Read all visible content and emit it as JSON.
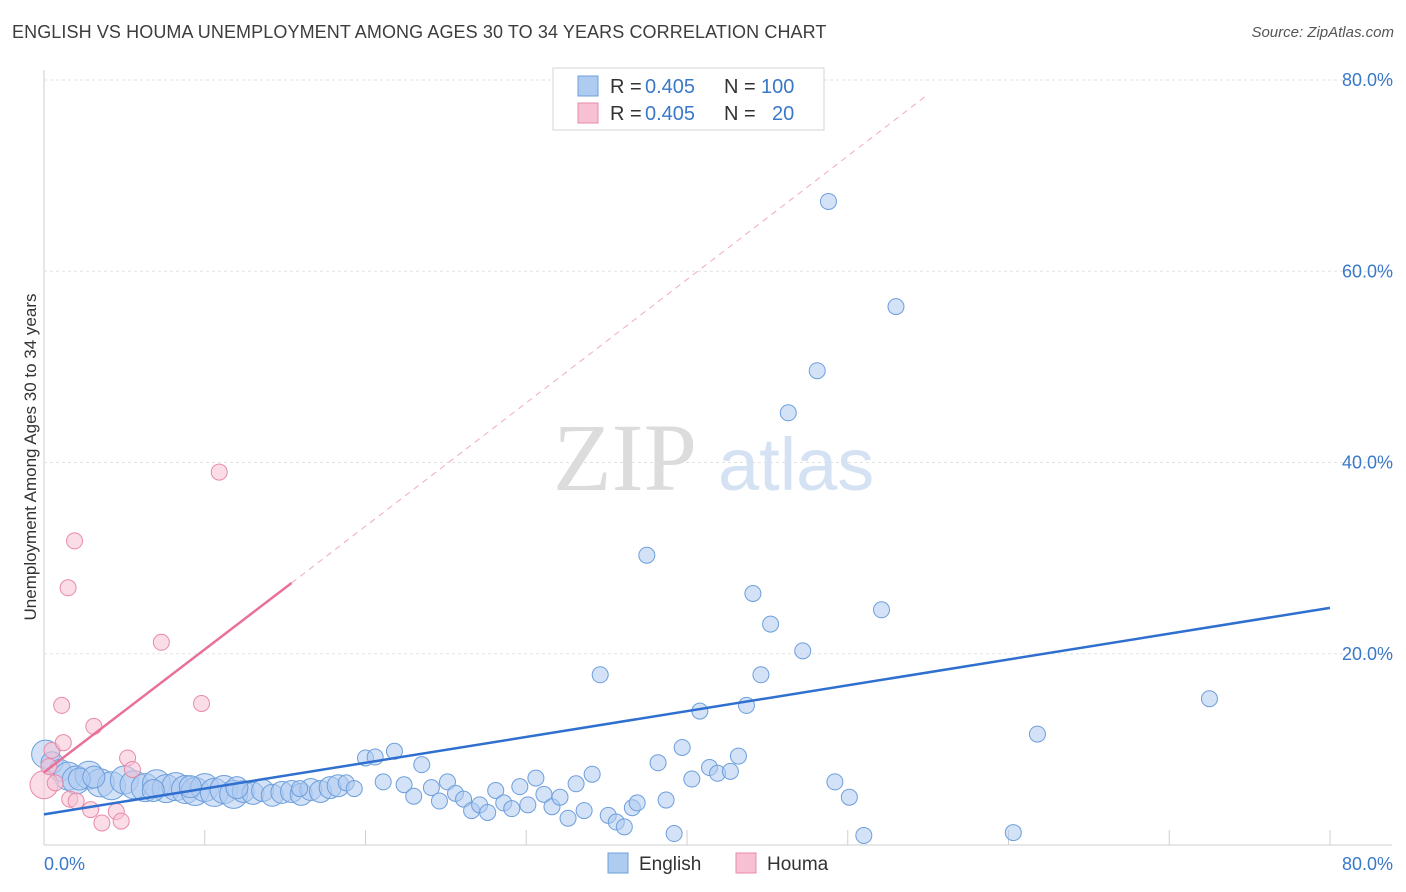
{
  "title": "ENGLISH VS HOUMA UNEMPLOYMENT AMONG AGES 30 TO 34 YEARS CORRELATION CHART",
  "source": "Source: ZipAtlas.com",
  "watermark": {
    "zip": "ZIP",
    "atlas": "atlas"
  },
  "legend": {
    "rows": [
      {
        "r_label": "R =",
        "r_value": "0.405",
        "n_label": "N =",
        "n_value": "100"
      },
      {
        "r_label": "R =",
        "r_value": "0.405",
        "n_label": "N =",
        "n_value": "20"
      }
    ]
  },
  "bottom_legend": [
    "English",
    "Houma"
  ],
  "colors": {
    "english_fill": "#aecbf0",
    "english_stroke": "#6d9fdc",
    "english_line": "#2f6fcf",
    "houma_fill": "#f7c1d3",
    "houma_stroke": "#e88aa9",
    "houma_line": "#e8709a",
    "tick_text": "#3a78c9",
    "grid": "#e2e2e2"
  },
  "chart_data": {
    "type": "scatter",
    "title": "ENGLISH VS HOUMA UNEMPLOYMENT AMONG AGES 30 TO 34 YEARS CORRELATION CHART",
    "xlabel": "",
    "ylabel": "Unemployment Among Ages 30 to 34 years",
    "xlim": [
      0,
      80
    ],
    "ylim": [
      0,
      80
    ],
    "x_ticks": [
      0,
      80
    ],
    "x_tick_labels": [
      "0.0%",
      "80.0%"
    ],
    "y_ticks": [
      20,
      40,
      60,
      80
    ],
    "y_tick_labels": [
      "20.0%",
      "40.0%",
      "60.0%",
      "80.0%"
    ],
    "grid": true,
    "legend_position": "top-center",
    "series": [
      {
        "name": "English",
        "r": 0.405,
        "n": 100,
        "trend": {
          "x": [
            0,
            80
          ],
          "y": [
            3.2,
            24.8
          ],
          "style": "solid"
        },
        "points": [
          {
            "x": 0.1,
            "y": 9.5,
            "s": 3
          },
          {
            "x": 0.5,
            "y": 8.6,
            "s": 2
          },
          {
            "x": 1.0,
            "y": 7.8,
            "s": 2
          },
          {
            "x": 1.5,
            "y": 7.2,
            "s": 3
          },
          {
            "x": 2.0,
            "y": 6.8,
            "s": 3
          },
          {
            "x": 2.8,
            "y": 7.3,
            "s": 3
          },
          {
            "x": 3.5,
            "y": 6.5,
            "s": 3
          },
          {
            "x": 4.2,
            "y": 6.2,
            "s": 3
          },
          {
            "x": 5.0,
            "y": 6.8,
            "s": 3
          },
          {
            "x": 5.6,
            "y": 6.3,
            "s": 3
          },
          {
            "x": 6.3,
            "y": 6.0,
            "s": 3
          },
          {
            "x": 7.0,
            "y": 6.4,
            "s": 3
          },
          {
            "x": 7.6,
            "y": 5.9,
            "s": 3
          },
          {
            "x": 8.2,
            "y": 6.1,
            "s": 3
          },
          {
            "x": 8.8,
            "y": 5.8,
            "s": 3
          },
          {
            "x": 9.4,
            "y": 5.6,
            "s": 3
          },
          {
            "x": 10.0,
            "y": 6.0,
            "s": 3
          },
          {
            "x": 10.6,
            "y": 5.5,
            "s": 3
          },
          {
            "x": 11.2,
            "y": 5.8,
            "s": 3
          },
          {
            "x": 11.8,
            "y": 5.3,
            "s": 3
          },
          {
            "x": 12.4,
            "y": 5.6,
            "s": 2
          },
          {
            "x": 13.0,
            "y": 5.4,
            "s": 2
          },
          {
            "x": 13.6,
            "y": 5.7,
            "s": 2
          },
          {
            "x": 14.2,
            "y": 5.2,
            "s": 2
          },
          {
            "x": 14.8,
            "y": 5.5,
            "s": 2
          },
          {
            "x": 15.4,
            "y": 5.6,
            "s": 2
          },
          {
            "x": 16.0,
            "y": 5.3,
            "s": 2
          },
          {
            "x": 16.6,
            "y": 5.8,
            "s": 2
          },
          {
            "x": 17.2,
            "y": 5.6,
            "s": 2
          },
          {
            "x": 17.8,
            "y": 6.0,
            "s": 2
          },
          {
            "x": 18.3,
            "y": 6.2,
            "s": 2
          },
          {
            "x": 18.8,
            "y": 6.5,
            "s": 1
          },
          {
            "x": 19.3,
            "y": 5.9,
            "s": 1
          },
          {
            "x": 20.0,
            "y": 9.1,
            "s": 1
          },
          {
            "x": 20.6,
            "y": 9.2,
            "s": 1
          },
          {
            "x": 21.1,
            "y": 6.6,
            "s": 1
          },
          {
            "x": 21.8,
            "y": 9.8,
            "s": 1
          },
          {
            "x": 22.4,
            "y": 6.3,
            "s": 1
          },
          {
            "x": 23.0,
            "y": 5.1,
            "s": 1
          },
          {
            "x": 23.5,
            "y": 8.4,
            "s": 1
          },
          {
            "x": 24.1,
            "y": 6.0,
            "s": 1
          },
          {
            "x": 24.6,
            "y": 4.6,
            "s": 1
          },
          {
            "x": 25.1,
            "y": 6.6,
            "s": 1
          },
          {
            "x": 25.6,
            "y": 5.4,
            "s": 1
          },
          {
            "x": 26.1,
            "y": 4.8,
            "s": 1
          },
          {
            "x": 26.6,
            "y": 3.6,
            "s": 1
          },
          {
            "x": 27.1,
            "y": 4.2,
            "s": 1
          },
          {
            "x": 27.6,
            "y": 3.4,
            "s": 1
          },
          {
            "x": 28.1,
            "y": 5.7,
            "s": 1
          },
          {
            "x": 28.6,
            "y": 4.4,
            "s": 1
          },
          {
            "x": 29.1,
            "y": 3.8,
            "s": 1
          },
          {
            "x": 29.6,
            "y": 6.1,
            "s": 1
          },
          {
            "x": 30.1,
            "y": 4.2,
            "s": 1
          },
          {
            "x": 30.6,
            "y": 7.0,
            "s": 1
          },
          {
            "x": 31.1,
            "y": 5.3,
            "s": 1
          },
          {
            "x": 31.6,
            "y": 4.0,
            "s": 1
          },
          {
            "x": 32.1,
            "y": 5.0,
            "s": 1
          },
          {
            "x": 32.6,
            "y": 2.8,
            "s": 1
          },
          {
            "x": 33.1,
            "y": 6.4,
            "s": 1
          },
          {
            "x": 33.6,
            "y": 3.6,
            "s": 1
          },
          {
            "x": 34.1,
            "y": 7.4,
            "s": 1
          },
          {
            "x": 34.6,
            "y": 17.8,
            "s": 1
          },
          {
            "x": 35.1,
            "y": 3.1,
            "s": 1
          },
          {
            "x": 35.6,
            "y": 2.4,
            "s": 1
          },
          {
            "x": 36.1,
            "y": 1.9,
            "s": 1
          },
          {
            "x": 36.6,
            "y": 3.9,
            "s": 1
          },
          {
            "x": 36.9,
            "y": 4.4,
            "s": 1
          },
          {
            "x": 37.5,
            "y": 30.3,
            "s": 1
          },
          {
            "x": 38.2,
            "y": 8.6,
            "s": 1
          },
          {
            "x": 38.7,
            "y": 4.7,
            "s": 1
          },
          {
            "x": 39.2,
            "y": 1.2,
            "s": 1
          },
          {
            "x": 39.7,
            "y": 10.2,
            "s": 1
          },
          {
            "x": 40.3,
            "y": 6.9,
            "s": 1
          },
          {
            "x": 40.8,
            "y": 14.0,
            "s": 1
          },
          {
            "x": 41.4,
            "y": 8.1,
            "s": 1
          },
          {
            "x": 41.9,
            "y": 7.5,
            "s": 1
          },
          {
            "x": 42.7,
            "y": 7.7,
            "s": 1
          },
          {
            "x": 43.2,
            "y": 9.3,
            "s": 1
          },
          {
            "x": 43.7,
            "y": 14.6,
            "s": 1
          },
          {
            "x": 44.1,
            "y": 26.3,
            "s": 1
          },
          {
            "x": 44.6,
            "y": 17.8,
            "s": 1
          },
          {
            "x": 45.2,
            "y": 23.1,
            "s": 1
          },
          {
            "x": 46.3,
            "y": 45.2,
            "s": 1
          },
          {
            "x": 47.2,
            "y": 20.3,
            "s": 1
          },
          {
            "x": 48.1,
            "y": 49.6,
            "s": 1
          },
          {
            "x": 48.8,
            "y": 67.3,
            "s": 1
          },
          {
            "x": 49.2,
            "y": 6.6,
            "s": 1
          },
          {
            "x": 50.1,
            "y": 5.0,
            "s": 1
          },
          {
            "x": 51.0,
            "y": 1.0,
            "s": 1
          },
          {
            "x": 52.1,
            "y": 24.6,
            "s": 1
          },
          {
            "x": 53.0,
            "y": 56.3,
            "s": 1
          },
          {
            "x": 60.3,
            "y": 1.3,
            "s": 1
          },
          {
            "x": 61.8,
            "y": 11.6,
            "s": 1
          },
          {
            "x": 72.5,
            "y": 15.3,
            "s": 1
          },
          {
            "x": 2.2,
            "y": 6.9,
            "s": 2
          },
          {
            "x": 3.1,
            "y": 7.1,
            "s": 2
          },
          {
            "x": 6.8,
            "y": 5.7,
            "s": 2
          },
          {
            "x": 9.1,
            "y": 6.1,
            "s": 2
          },
          {
            "x": 12.0,
            "y": 6.0,
            "s": 2
          },
          {
            "x": 15.9,
            "y": 5.9,
            "s": 1
          }
        ]
      },
      {
        "name": "Houma",
        "r": 0.405,
        "n": 20,
        "trend": {
          "x": [
            0,
            15.4
          ],
          "y": [
            7.6,
            27.4
          ],
          "style": "solid",
          "extended_to": [
            55,
            78.5
          ],
          "extended_style": "dashed"
        },
        "points": [
          {
            "x": 0.0,
            "y": 6.3,
            "s": 3
          },
          {
            "x": 0.5,
            "y": 9.9,
            "s": 1
          },
          {
            "x": 0.7,
            "y": 6.5,
            "s": 1
          },
          {
            "x": 1.1,
            "y": 14.6,
            "s": 1
          },
          {
            "x": 1.2,
            "y": 10.7,
            "s": 1
          },
          {
            "x": 1.5,
            "y": 26.9,
            "s": 1
          },
          {
            "x": 1.6,
            "y": 4.8,
            "s": 1
          },
          {
            "x": 1.9,
            "y": 31.8,
            "s": 1
          },
          {
            "x": 2.0,
            "y": 4.6,
            "s": 1
          },
          {
            "x": 2.9,
            "y": 3.7,
            "s": 1
          },
          {
            "x": 3.1,
            "y": 12.4,
            "s": 1
          },
          {
            "x": 3.6,
            "y": 2.3,
            "s": 1
          },
          {
            "x": 4.5,
            "y": 3.5,
            "s": 1
          },
          {
            "x": 4.8,
            "y": 2.5,
            "s": 1
          },
          {
            "x": 5.2,
            "y": 9.1,
            "s": 1
          },
          {
            "x": 5.5,
            "y": 7.9,
            "s": 1
          },
          {
            "x": 7.3,
            "y": 21.2,
            "s": 1
          },
          {
            "x": 9.8,
            "y": 14.8,
            "s": 1
          },
          {
            "x": 10.9,
            "y": 39.0,
            "s": 1
          },
          {
            "x": 0.3,
            "y": 8.2,
            "s": 1
          }
        ]
      }
    ]
  }
}
